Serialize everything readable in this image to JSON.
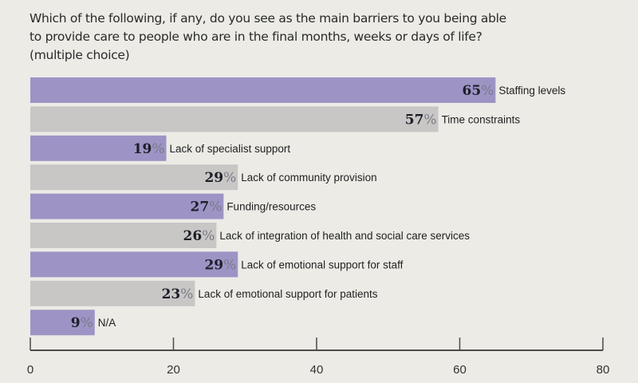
{
  "chart_data": {
    "type": "bar",
    "orientation": "horizontal",
    "title": "Which of the following, if any, do you see as the main barriers to you being able to provide care to people who are in the final months, weeks or days of life? (multiple choice)",
    "title_lines": [
      "Which of the following, if any, do you see as the main barriers to you being able",
      "to provide care to people who are in the final months, weeks or days of life?",
      "(multiple choice)"
    ],
    "categories": [
      "Staffing levels",
      "Time constraints",
      "Lack of specialist support",
      "Lack of community provision",
      "Funding/resources",
      "Lack of integration of health and social care services",
      "Lack of emotional support for staff",
      "Lack of emotional support for patients",
      "N/A"
    ],
    "values": [
      65,
      57,
      19,
      29,
      27,
      26,
      29,
      23,
      9
    ],
    "value_suffix": "%",
    "xlabel": "",
    "ylabel": "",
    "xlim": [
      0,
      80
    ],
    "xticks": [
      0,
      20,
      40,
      60,
      80
    ],
    "grid": false,
    "legend": "none",
    "colors": {
      "alternating": [
        "#9d94c5",
        "#c8c7c5"
      ],
      "background": "#ecebe6",
      "axis": "#4a4a4a"
    }
  }
}
